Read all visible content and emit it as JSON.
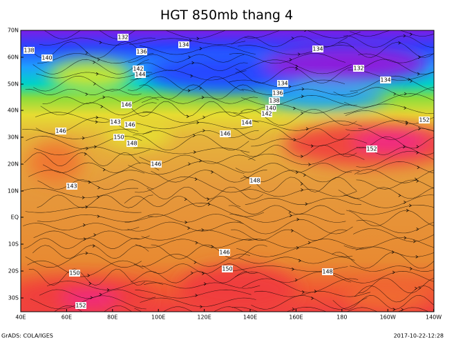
{
  "title": "HGT 850mb thang 4",
  "lat_labels": [
    "70N",
    "60N",
    "50N",
    "40N",
    "30N",
    "20N",
    "10N",
    "EQ",
    "10S",
    "20S",
    "30S"
  ],
  "lon_labels": [
    "40E",
    "60E",
    "80E",
    "100E",
    "120E",
    "140E",
    "160E",
    "180",
    "160W",
    "140W"
  ],
  "contour_labels": [
    132,
    138,
    140,
    136,
    134,
    134,
    132,
    134,
    142,
    144,
    134,
    136,
    138,
    140,
    142,
    146,
    143,
    146,
    144,
    146,
    146,
    150,
    148,
    146,
    152,
    152,
    148,
    143,
    146,
    150,
    150,
    148,
    152
  ],
  "footer": {
    "left": "GrADS: COLA/IGES",
    "right": "2017-10-22-12:28"
  }
}
